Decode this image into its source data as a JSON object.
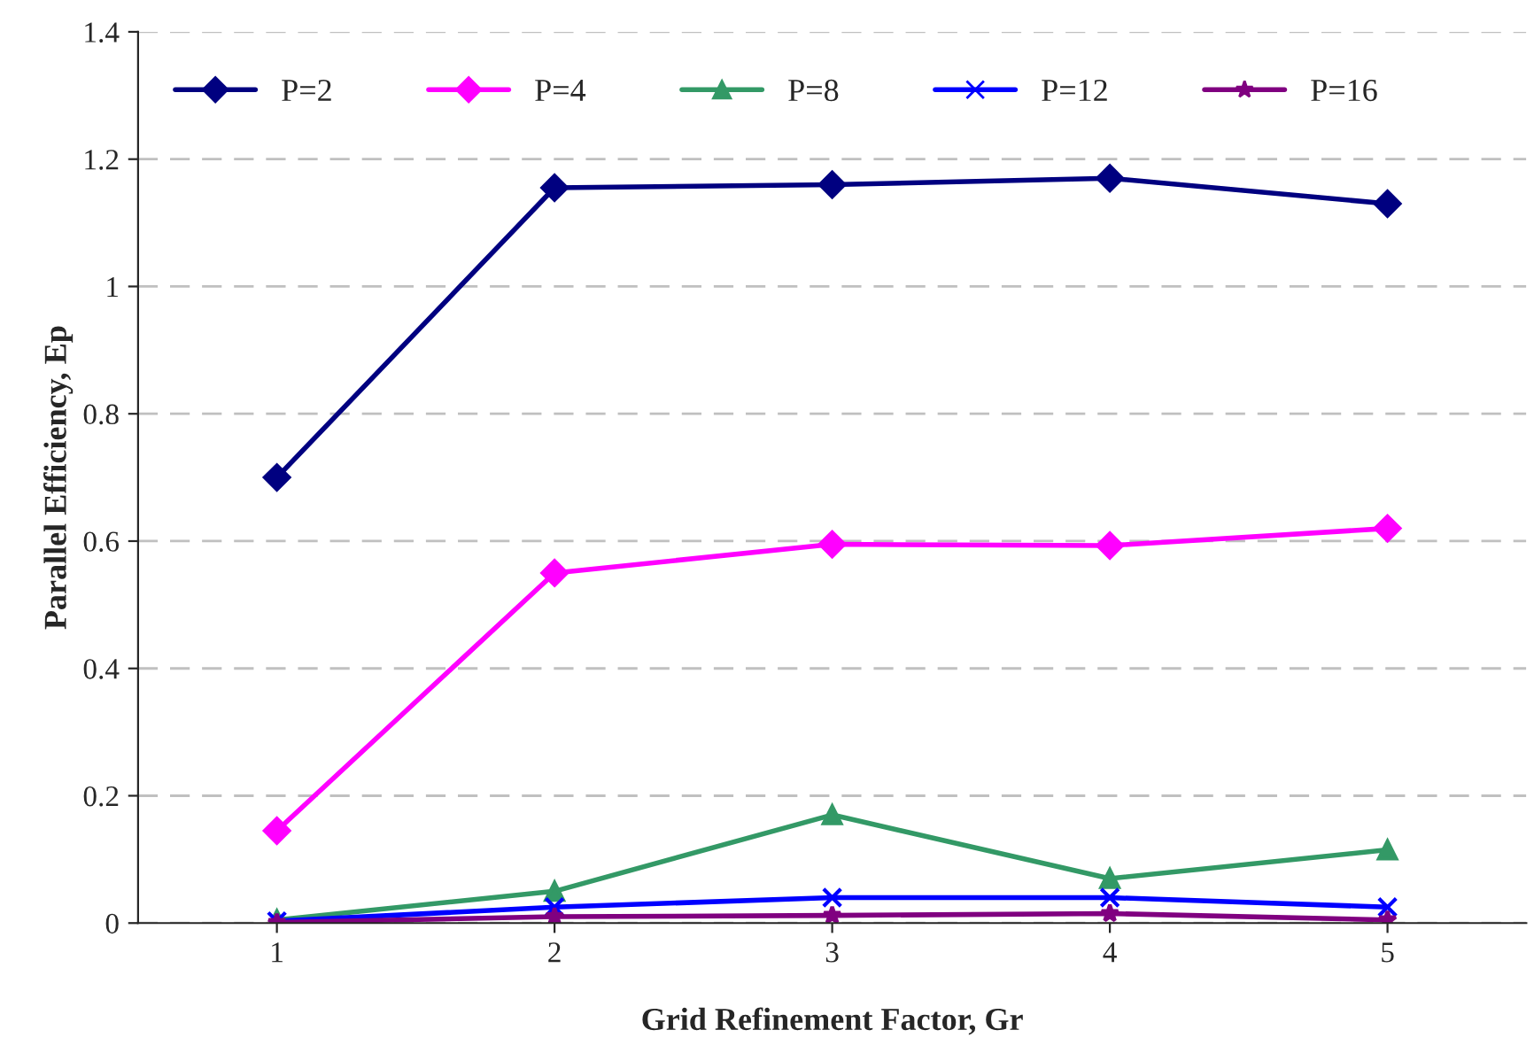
{
  "chart_data": {
    "type": "line",
    "xlabel": "Grid Refinement Factor, Gr",
    "ylabel": "Parallel Efficiency, Ep",
    "categories": [
      "1",
      "2",
      "3",
      "4",
      "5"
    ],
    "series": [
      {
        "name": "P=2",
        "color": "#000080",
        "marker": "diamond",
        "values": [
          0.7,
          1.155,
          1.16,
          1.17,
          1.13
        ]
      },
      {
        "name": "P=4",
        "color": "#ff00ff",
        "marker": "diamond",
        "values": [
          0.145,
          0.55,
          0.595,
          0.593,
          0.62
        ]
      },
      {
        "name": "P=8",
        "color": "#339966",
        "marker": "triangle",
        "values": [
          0.005,
          0.05,
          0.17,
          0.07,
          0.115
        ]
      },
      {
        "name": "P=12",
        "color": "#0000ff",
        "marker": "cross",
        "values": [
          0.003,
          0.025,
          0.04,
          0.04,
          0.025
        ]
      },
      {
        "name": "P=16",
        "color": "#800080",
        "marker": "star",
        "values": [
          0.001,
          0.01,
          0.012,
          0.015,
          0.005
        ]
      }
    ],
    "ylim": [
      0,
      1.4
    ],
    "yticks": [
      0,
      {
        "value": 0.2,
        "label": "0.2"
      },
      {
        "value": 0.4,
        "label": "0.4"
      },
      {
        "value": 0.6,
        "label": "0.6"
      },
      {
        "value": 0.8,
        "label": "0.8"
      },
      1,
      {
        "value": 1.2,
        "label": "1.2"
      },
      {
        "value": 1.4,
        "label": "1.4"
      }
    ],
    "grid": "y",
    "legend": "top",
    "line_style": "solid"
  }
}
